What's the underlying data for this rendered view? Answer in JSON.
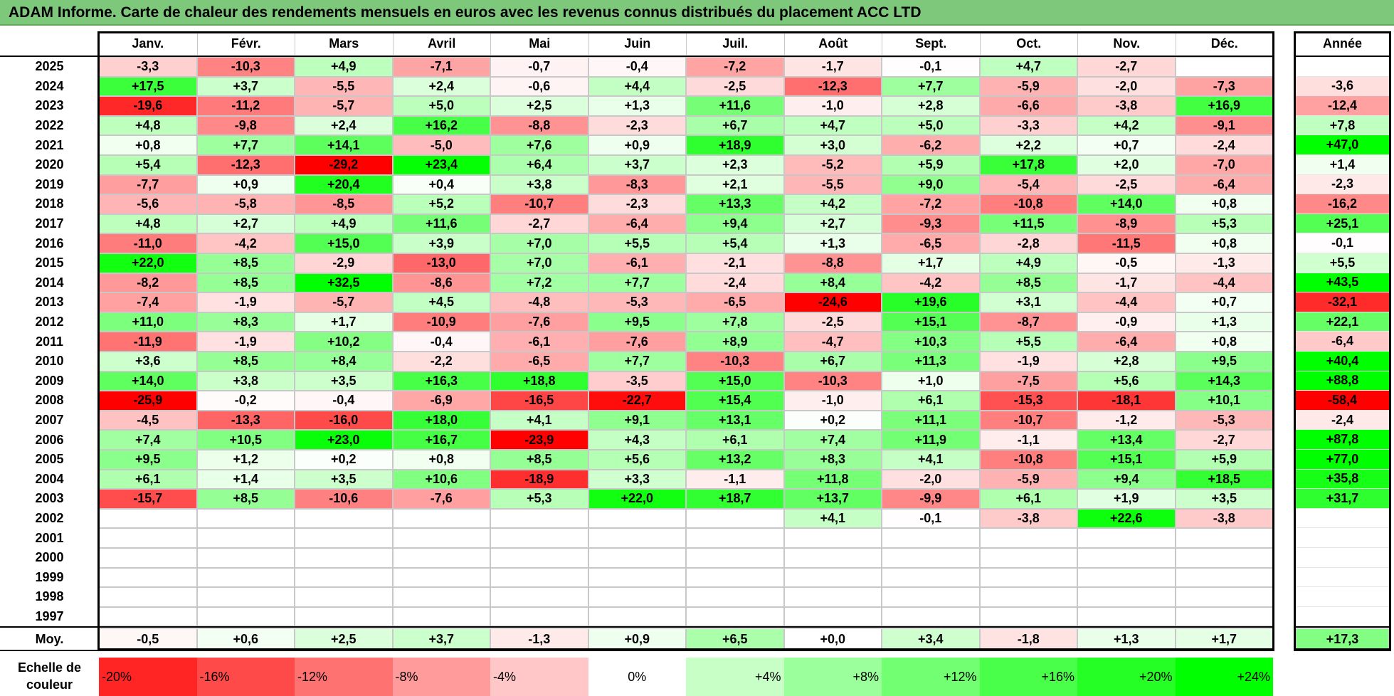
{
  "title": "ADAM Informe. Carte de chaleur des rendements mensuels en euros avec les revenus connus distribués du placement ACC LTD",
  "chart_data": {
    "type": "heatmap",
    "columns": [
      "Janv.",
      "Févr.",
      "Mars",
      "Avril",
      "Mai",
      "Juin",
      "Juil.",
      "Août",
      "Sept.",
      "Oct.",
      "Nov.",
      "Déc."
    ],
    "year_column": "Année",
    "rows": [
      {
        "year": "2025",
        "months": [
          -3.3,
          -10.3,
          4.9,
          -7.1,
          -0.7,
          -0.4,
          -7.2,
          -1.7,
          -0.1,
          4.7,
          -2.7,
          null
        ],
        "annual": null
      },
      {
        "year": "2024",
        "months": [
          17.5,
          3.7,
          -5.5,
          2.4,
          -0.6,
          4.4,
          -2.5,
          -12.3,
          7.7,
          -5.9,
          -2.0,
          -7.3
        ],
        "annual": -3.6
      },
      {
        "year": "2023",
        "months": [
          -19.6,
          -11.2,
          -5.7,
          5.0,
          2.5,
          1.3,
          11.6,
          -1.0,
          2.8,
          -6.6,
          -3.8,
          16.9
        ],
        "annual": -12.4
      },
      {
        "year": "2022",
        "months": [
          4.8,
          -9.8,
          2.4,
          16.2,
          -8.8,
          -2.3,
          6.7,
          4.7,
          5.0,
          -3.3,
          4.2,
          -9.1
        ],
        "annual": 7.8
      },
      {
        "year": "2021",
        "months": [
          0.8,
          7.7,
          14.1,
          -5.0,
          7.6,
          0.9,
          18.9,
          3.0,
          -6.2,
          2.2,
          0.7,
          -2.4
        ],
        "annual": 47.0
      },
      {
        "year": "2020",
        "months": [
          5.4,
          -12.3,
          -29.2,
          23.4,
          6.4,
          3.7,
          2.3,
          -5.2,
          5.9,
          17.8,
          2.0,
          -7.0
        ],
        "annual": 1.4
      },
      {
        "year": "2019",
        "months": [
          -7.7,
          0.9,
          20.4,
          0.4,
          3.8,
          -8.3,
          2.1,
          -5.5,
          9.0,
          -5.4,
          -2.5,
          -6.4
        ],
        "annual": -2.3
      },
      {
        "year": "2018",
        "months": [
          -5.6,
          -5.8,
          -8.5,
          5.2,
          -10.7,
          -2.3,
          13.3,
          4.2,
          -7.2,
          -10.8,
          14.0,
          0.8
        ],
        "annual": -16.2
      },
      {
        "year": "2017",
        "months": [
          4.8,
          2.7,
          4.9,
          11.6,
          -2.7,
          -6.4,
          9.4,
          2.7,
          -9.3,
          11.5,
          -8.9,
          5.3
        ],
        "annual": 25.1
      },
      {
        "year": "2016",
        "months": [
          -11.0,
          -4.2,
          15.0,
          3.9,
          7.0,
          5.5,
          5.4,
          1.3,
          -6.5,
          -2.8,
          -11.5,
          0.8
        ],
        "annual": -0.1
      },
      {
        "year": "2015",
        "months": [
          22.0,
          8.5,
          -2.9,
          -13.0,
          7.0,
          -6.1,
          -2.1,
          -8.8,
          1.7,
          4.9,
          -0.5,
          -1.3
        ],
        "annual": 5.5
      },
      {
        "year": "2014",
        "months": [
          -8.2,
          8.5,
          32.5,
          -8.6,
          7.2,
          7.7,
          -2.4,
          8.4,
          -4.2,
          8.5,
          -1.7,
          -4.4
        ],
        "annual": 43.5
      },
      {
        "year": "2013",
        "months": [
          -7.4,
          -1.9,
          -5.7,
          4.5,
          -4.8,
          -5.3,
          -6.5,
          -24.6,
          19.6,
          3.1,
          -4.4,
          0.7
        ],
        "annual": -32.1
      },
      {
        "year": "2012",
        "months": [
          11.0,
          8.3,
          1.7,
          -10.9,
          -7.6,
          9.5,
          7.8,
          -2.5,
          15.1,
          -8.7,
          -0.9,
          1.3
        ],
        "annual": 22.1
      },
      {
        "year": "2011",
        "months": [
          -11.9,
          -1.9,
          10.2,
          -0.4,
          -6.1,
          -7.6,
          8.9,
          -4.7,
          10.3,
          5.5,
          -6.4,
          0.8
        ],
        "annual": -6.4
      },
      {
        "year": "2010",
        "months": [
          3.6,
          8.5,
          8.4,
          -2.2,
          -6.5,
          7.7,
          -10.3,
          6.7,
          11.3,
          -1.9,
          2.8,
          9.5
        ],
        "annual": 40.4
      },
      {
        "year": "2009",
        "months": [
          14.0,
          3.8,
          3.5,
          16.3,
          18.8,
          -3.5,
          15.0,
          -10.3,
          1.0,
          -7.5,
          5.6,
          14.3
        ],
        "annual": 88.8
      },
      {
        "year": "2008",
        "months": [
          -25.9,
          -0.2,
          -0.4,
          -6.9,
          -16.5,
          -22.7,
          15.4,
          -1.0,
          6.1,
          -15.3,
          -18.1,
          10.1
        ],
        "annual": -58.4
      },
      {
        "year": "2007",
        "months": [
          -4.5,
          -13.3,
          -16.0,
          18.0,
          4.1,
          9.1,
          13.1,
          0.2,
          11.1,
          -10.7,
          -1.2,
          -5.3
        ],
        "annual": -2.4
      },
      {
        "year": "2006",
        "months": [
          7.4,
          10.5,
          23.0,
          16.7,
          -23.9,
          4.3,
          6.1,
          7.4,
          11.9,
          -1.1,
          13.4,
          -2.7
        ],
        "annual": 87.8
      },
      {
        "year": "2005",
        "months": [
          9.5,
          1.2,
          0.2,
          0.8,
          8.5,
          5.6,
          13.2,
          8.3,
          4.1,
          -10.8,
          15.1,
          5.9
        ],
        "annual": 77.0
      },
      {
        "year": "2004",
        "months": [
          6.1,
          1.4,
          3.5,
          10.6,
          -18.9,
          3.3,
          -1.1,
          11.8,
          -2.0,
          -5.9,
          9.4,
          18.5
        ],
        "annual": 35.8
      },
      {
        "year": "2003",
        "months": [
          -15.7,
          8.5,
          -10.6,
          -7.6,
          5.3,
          22.0,
          18.7,
          13.7,
          -9.9,
          6.1,
          1.9,
          3.5
        ],
        "annual": 31.7
      },
      {
        "year": "2002",
        "months": [
          null,
          null,
          null,
          null,
          null,
          null,
          null,
          4.1,
          -0.1,
          -3.8,
          22.6,
          -3.8
        ],
        "annual": null
      },
      {
        "year": "2001",
        "months": [
          null,
          null,
          null,
          null,
          null,
          null,
          null,
          null,
          null,
          null,
          null,
          null
        ],
        "annual": null
      },
      {
        "year": "2000",
        "months": [
          null,
          null,
          null,
          null,
          null,
          null,
          null,
          null,
          null,
          null,
          null,
          null
        ],
        "annual": null
      },
      {
        "year": "1999",
        "months": [
          null,
          null,
          null,
          null,
          null,
          null,
          null,
          null,
          null,
          null,
          null,
          null
        ],
        "annual": null
      },
      {
        "year": "1998",
        "months": [
          null,
          null,
          null,
          null,
          null,
          null,
          null,
          null,
          null,
          null,
          null,
          null
        ],
        "annual": null
      },
      {
        "year": "1997",
        "months": [
          null,
          null,
          null,
          null,
          null,
          null,
          null,
          null,
          null,
          null,
          null,
          null
        ],
        "annual": null
      }
    ],
    "average": {
      "label": "Moy.",
      "months": [
        -0.5,
        0.6,
        2.5,
        3.7,
        -1.3,
        0.9,
        6.5,
        0.0,
        3.4,
        -1.8,
        1.3,
        1.7
      ],
      "annual": 17.3
    },
    "scale": {
      "label": "Echelle de couleur",
      "steps": [
        {
          "label": "-20%",
          "value": -20
        },
        {
          "label": "-16%",
          "value": -16
        },
        {
          "label": "-12%",
          "value": -12
        },
        {
          "label": "-8%",
          "value": -8
        },
        {
          "label": "-4%",
          "value": -4
        },
        {
          "label": "0%",
          "value": 0
        },
        {
          "label": "+4%",
          "value": 4
        },
        {
          "label": "+8%",
          "value": 8
        },
        {
          "label": "+12%",
          "value": 12
        },
        {
          "label": "+16%",
          "value": 16
        },
        {
          "label": "+20%",
          "value": 20
        },
        {
          "label": "+24%",
          "value": 24
        }
      ]
    },
    "colors": {
      "negative_max": "#ff0000",
      "neutral": "#ffffff",
      "positive_max": "#00ff00",
      "title_bar": "#7dc87b"
    }
  }
}
